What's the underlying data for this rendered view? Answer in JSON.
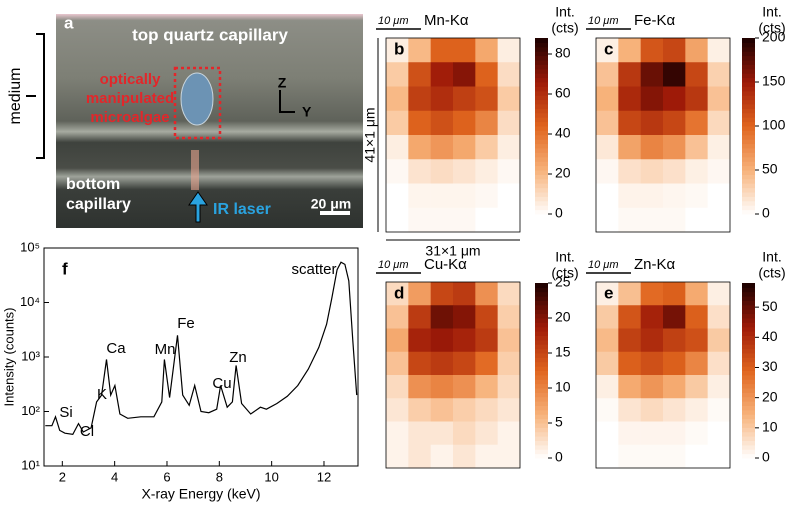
{
  "panel_a": {
    "label": "a",
    "top": "top quartz capillary",
    "target": [
      "optically",
      "manipulated",
      "microalgae"
    ],
    "axis_z": "Z",
    "axis_y": "Y",
    "bottom": [
      "bottom",
      "capillary"
    ],
    "laser": "IR laser",
    "scalebar": "20 μm",
    "bracket": "medium"
  },
  "chart_data": [
    {
      "type": "heatmap",
      "panel": "b",
      "title": "Mn-Kα",
      "scalebar": "10 μm",
      "colorbar_label": [
        "Int.",
        "(cts)"
      ],
      "ylabel": "41×1 μm",
      "xlabel": "31×1 μm",
      "colormap": [
        "#ffffff",
        "#f7b27a",
        "#e0651e",
        "#9e1a08",
        "#1a0000"
      ],
      "clim": [
        0,
        88
      ],
      "cticks": [
        0,
        20,
        40,
        60,
        80
      ],
      "z": [
        [
          5,
          20,
          45,
          45,
          25,
          5
        ],
        [
          15,
          50,
          65,
          70,
          45,
          10
        ],
        [
          20,
          55,
          60,
          55,
          50,
          15
        ],
        [
          15,
          45,
          50,
          45,
          35,
          10
        ],
        [
          5,
          25,
          30,
          25,
          15,
          5
        ],
        [
          2,
          8,
          10,
          8,
          5,
          2
        ],
        [
          0,
          3,
          3,
          3,
          2,
          0
        ],
        [
          0,
          2,
          2,
          2,
          0,
          0
        ]
      ]
    },
    {
      "type": "heatmap",
      "panel": "c",
      "title": "Fe-Kα",
      "scalebar": "10 μm",
      "colorbar_label": [
        "Int.",
        "(cts)"
      ],
      "colormap": [
        "#ffffff",
        "#f7b27a",
        "#e0651e",
        "#9e1a08",
        "#1a0000"
      ],
      "clim": [
        0,
        200
      ],
      "cticks": [
        0,
        50,
        100,
        150,
        200
      ],
      "z": [
        [
          10,
          50,
          110,
          120,
          60,
          10
        ],
        [
          40,
          130,
          170,
          190,
          120,
          30
        ],
        [
          50,
          140,
          160,
          150,
          130,
          40
        ],
        [
          40,
          120,
          130,
          120,
          90,
          25
        ],
        [
          15,
          60,
          80,
          70,
          40,
          10
        ],
        [
          5,
          20,
          25,
          20,
          10,
          5
        ],
        [
          0,
          8,
          8,
          6,
          4,
          0
        ],
        [
          0,
          4,
          4,
          4,
          0,
          0
        ]
      ]
    },
    {
      "type": "heatmap",
      "panel": "d",
      "title": "Cu-Kα",
      "scalebar": "10 μm",
      "colorbar_label": [
        "Int.",
        "(cts)"
      ],
      "colormap": [
        "#ffffff",
        "#f7b27a",
        "#e0651e",
        "#9e1a08",
        "#1a0000"
      ],
      "clim": [
        0,
        25
      ],
      "cticks": [
        0,
        5,
        10,
        15,
        20,
        25
      ],
      "z": [
        [
          3,
          8,
          15,
          16,
          9,
          3
        ],
        [
          5,
          16,
          21,
          20,
          15,
          4
        ],
        [
          7,
          18,
          19,
          18,
          16,
          5
        ],
        [
          5,
          15,
          16,
          15,
          12,
          4
        ],
        [
          3,
          9,
          10,
          9,
          6,
          3
        ],
        [
          2,
          4,
          5,
          4,
          3,
          2
        ],
        [
          1,
          2,
          2,
          3,
          2,
          1
        ],
        [
          1,
          2,
          1,
          2,
          1,
          1
        ]
      ]
    },
    {
      "type": "heatmap",
      "panel": "e",
      "title": "Zn-Kα",
      "scalebar": "10 μm",
      "colorbar_label": [
        "Int.",
        "(cts)"
      ],
      "colormap": [
        "#ffffff",
        "#f7b27a",
        "#e0651e",
        "#9e1a08",
        "#1a0000"
      ],
      "clim": [
        0,
        58
      ],
      "cticks": [
        0,
        10,
        20,
        30,
        40,
        50
      ],
      "z": [
        [
          3,
          12,
          28,
          30,
          16,
          3
        ],
        [
          10,
          32,
          42,
          48,
          30,
          6
        ],
        [
          13,
          36,
          40,
          36,
          33,
          10
        ],
        [
          10,
          30,
          33,
          30,
          23,
          6
        ],
        [
          3,
          16,
          20,
          16,
          10,
          3
        ],
        [
          1,
          5,
          7,
          5,
          3,
          1
        ],
        [
          0,
          2,
          2,
          2,
          1,
          0
        ],
        [
          0,
          1,
          1,
          1,
          0,
          0
        ]
      ]
    },
    {
      "type": "line",
      "panel": "f",
      "xlabel": "X-ray Energy (keV)",
      "ylabel": "Intensity (counts)",
      "color": "#000000",
      "log_y": true,
      "xlim": [
        1.3,
        13.3
      ],
      "ylim": [
        10,
        100000
      ],
      "xticks": [
        2,
        4,
        6,
        8,
        10,
        12
      ],
      "yticks": [
        {
          "value": 10,
          "label": "10¹"
        },
        {
          "value": 100,
          "label": "10²"
        },
        {
          "value": 1000,
          "label": "10³"
        },
        {
          "value": 10000,
          "label": "10⁴"
        },
        {
          "value": 100000,
          "label": "10⁵"
        }
      ],
      "annotations": [
        "scatter",
        "Si",
        "Cl",
        "K",
        "Ca",
        "Mn",
        "Fe",
        "Cu",
        "Zn"
      ],
      "x": [
        1.35,
        1.6,
        1.74,
        1.9,
        2.1,
        2.4,
        2.62,
        2.8,
        3.1,
        3.31,
        3.5,
        3.69,
        3.85,
        4.01,
        4.2,
        4.5,
        5.0,
        5.5,
        5.8,
        5.9,
        6.1,
        6.4,
        6.6,
        6.85,
        7.06,
        7.3,
        7.6,
        7.9,
        8.05,
        8.3,
        8.5,
        8.64,
        8.85,
        9.2,
        9.57,
        9.8,
        10.2,
        10.6,
        11.0,
        11.4,
        11.8,
        12.1,
        12.3,
        12.5,
        12.65,
        12.8,
        12.95,
        13.1,
        13.25
      ],
      "values": [
        55,
        55,
        80,
        45,
        40,
        38,
        60,
        42,
        50,
        150,
        200,
        900,
        200,
        300,
        90,
        75,
        80,
        80,
        150,
        900,
        180,
        2500,
        200,
        130,
        300,
        100,
        95,
        110,
        300,
        120,
        150,
        700,
        140,
        90,
        120,
        110,
        140,
        190,
        300,
        600,
        1500,
        4000,
        12000,
        40000,
        55000,
        50000,
        25000,
        2000,
        200
      ]
    }
  ]
}
